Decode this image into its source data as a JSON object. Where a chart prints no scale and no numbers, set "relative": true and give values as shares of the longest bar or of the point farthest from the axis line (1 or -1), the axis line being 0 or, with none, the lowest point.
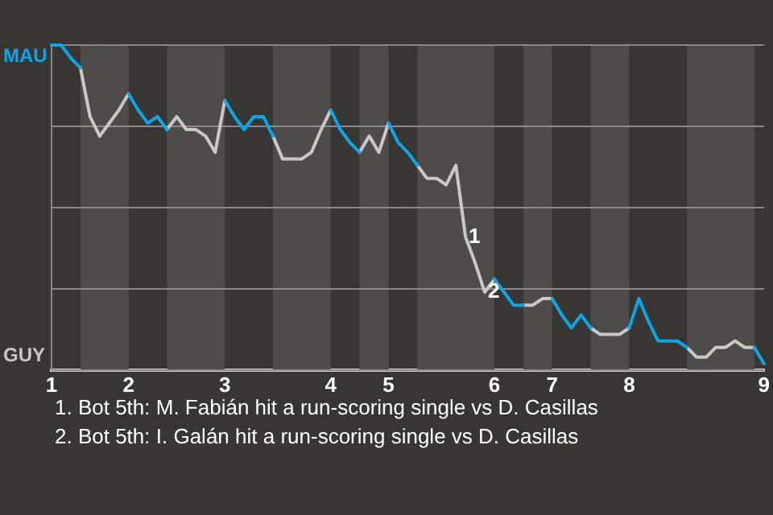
{
  "chart_data": {
    "type": "line",
    "relative": true,
    "categories": [
      "1",
      null,
      null,
      null,
      null,
      null,
      null,
      null,
      "2",
      null,
      null,
      null,
      null,
      null,
      null,
      null,
      null,
      null,
      "3",
      null,
      null,
      null,
      null,
      null,
      null,
      null,
      null,
      null,
      null,
      "4",
      null,
      null,
      null,
      null,
      null,
      "5",
      null,
      null,
      null,
      null,
      null,
      null,
      null,
      null,
      null,
      null,
      "6",
      null,
      null,
      null,
      null,
      null,
      "7",
      null,
      null,
      null,
      null,
      null,
      null,
      null,
      "8",
      null,
      null,
      null,
      null,
      null,
      null,
      null,
      null,
      null,
      null,
      null,
      null,
      null,
      "9"
    ],
    "grid": "y",
    "legend": false,
    "marker": "none",
    "line_style": "solid",
    "series": [
      {
        "name": "MAU",
        "color": "#0ba5e8",
        "values": [
          1,
          1,
          0.96,
          0.93,
          null,
          null,
          null,
          null,
          0.85,
          0.8,
          0.76,
          0.78,
          0.74,
          null,
          null,
          null,
          null,
          null,
          0.83,
          0.78,
          0.74,
          0.78,
          0.78,
          0.72,
          null,
          null,
          null,
          null,
          null,
          0.8,
          0.74,
          0.7,
          0.67,
          null,
          null,
          0.76,
          0.7,
          0.67,
          0.63,
          null,
          null,
          null,
          null,
          null,
          null,
          null,
          0.28,
          0.24,
          0.2,
          0.2,
          null,
          null,
          0.22,
          0.17,
          0.13,
          0.17,
          0.13,
          null,
          null,
          null,
          0.13,
          0.22,
          0.15,
          0.09,
          0.09,
          0.09,
          0.07,
          null,
          null,
          null,
          null,
          null,
          null,
          0.07,
          0.02
        ]
      },
      {
        "name": "GUY",
        "color": "#c8c8c8",
        "values": [
          null,
          null,
          null,
          0.93,
          0.78,
          0.72,
          0.76,
          0.8,
          0.85,
          null,
          null,
          null,
          0.74,
          0.78,
          0.74,
          0.74,
          0.72,
          0.67,
          0.83,
          null,
          null,
          null,
          null,
          0.72,
          0.65,
          0.65,
          0.65,
          0.67,
          0.74,
          0.8,
          null,
          null,
          0.67,
          0.72,
          0.67,
          0.76,
          null,
          null,
          0.63,
          0.59,
          0.59,
          0.57,
          0.63,
          0.41,
          0.33,
          0.24,
          0.28,
          null,
          null,
          0.2,
          0.2,
          0.22,
          0.22,
          null,
          null,
          null,
          0.13,
          0.11,
          0.11,
          0.11,
          0.13,
          null,
          null,
          null,
          null,
          null,
          0.07,
          0.04,
          0.04,
          0.07,
          0.07,
          0.09,
          0.07,
          0.07,
          null
        ],
        "line_style": "solid"
      }
    ],
    "annotations": [
      {
        "text": "1",
        "y": 0.41
      },
      {
        "text": "2",
        "y": 0.24
      },
      "1. Bot 5th: M. Fabián hit a run-scoring single vs D. Casillas",
      "2. Bot 5th: I. Galán hit a run-scoring single vs D. Casillas"
    ]
  }
}
